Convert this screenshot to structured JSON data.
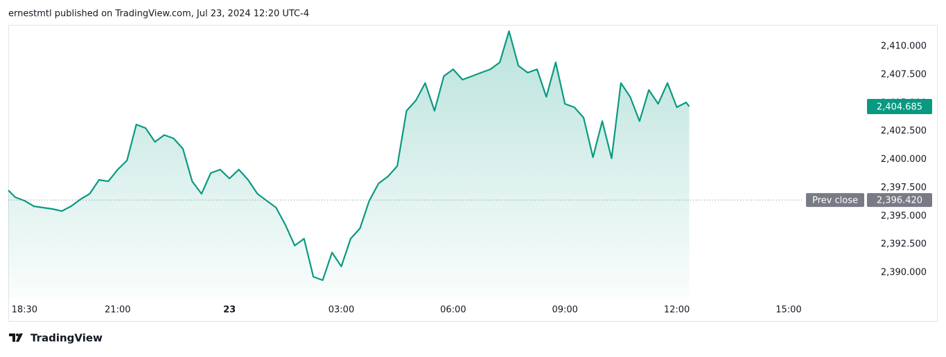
{
  "header": "ernestmtl published on TradingView.com, Jul 23, 2024 12:20 UTC-4",
  "footer_brand": "TradingView",
  "chart_data": {
    "type": "area",
    "color": "#089981",
    "x": [
      "18:04",
      "18:15",
      "18:30",
      "18:45",
      "19:00",
      "19:15",
      "19:30",
      "19:45",
      "20:00",
      "20:15",
      "20:30",
      "20:45",
      "21:00",
      "21:15",
      "21:30",
      "21:45",
      "22:00",
      "22:15",
      "22:30",
      "22:45",
      "23:00",
      "23:15",
      "23:30",
      "23:45",
      "00:00",
      "00:15",
      "00:30",
      "00:45",
      "01:00",
      "01:15",
      "01:30",
      "01:45",
      "02:00",
      "02:15",
      "02:30",
      "02:45",
      "03:00",
      "03:15",
      "03:30",
      "03:45",
      "04:00",
      "04:15",
      "04:30",
      "04:45",
      "05:00",
      "05:15",
      "05:30",
      "05:45",
      "06:00",
      "06:15",
      "06:30",
      "06:45",
      "07:00",
      "07:15",
      "07:30",
      "07:45",
      "08:00",
      "08:15",
      "08:30",
      "08:45",
      "09:00",
      "09:15",
      "09:30",
      "09:45",
      "10:00",
      "10:15",
      "10:30",
      "10:45",
      "11:00",
      "11:15",
      "11:30",
      "11:45",
      "12:00",
      "12:15",
      "12:20"
    ],
    "values": [
      2397.28,
      2396.67,
      2396.36,
      2395.87,
      2395.75,
      2395.63,
      2395.44,
      2395.87,
      2396.48,
      2396.97,
      2398.2,
      2398.07,
      2399.11,
      2399.91,
      2403.09,
      2402.78,
      2401.56,
      2402.17,
      2401.87,
      2400.95,
      2398.07,
      2396.97,
      2398.81,
      2399.11,
      2398.32,
      2399.11,
      2398.2,
      2396.97,
      2396.36,
      2395.75,
      2394.22,
      2392.39,
      2393.0,
      2389.63,
      2389.33,
      2391.78,
      2390.55,
      2393.0,
      2393.91,
      2396.36,
      2397.89,
      2398.5,
      2399.42,
      2404.31,
      2405.23,
      2406.76,
      2404.31,
      2407.37,
      2407.98,
      2407.06,
      2407.37,
      2407.68,
      2407.98,
      2408.59,
      2411.35,
      2408.29,
      2407.68,
      2407.98,
      2405.54,
      2408.59,
      2404.92,
      2404.62,
      2403.7,
      2400.2,
      2403.39,
      2400.1,
      2406.76,
      2405.54,
      2403.39,
      2406.15,
      2404.92,
      2406.76,
      2404.62,
      2405.05,
      2404.685
    ],
    "last_price": {
      "value": 2404.685,
      "label": "2,404.685"
    },
    "prev_close": {
      "name": "Prev close",
      "value": 2396.42,
      "label": "2,396.420"
    },
    "xlim": [
      "18:04",
      "17:05"
    ],
    "xticks": [
      "18:30",
      "21:00",
      {
        "value": "00:00",
        "label": "23"
      },
      "03:00",
      "06:00",
      "09:00",
      "12:00",
      "15:00"
    ],
    "ylim": [
      2387.68,
      2411.9
    ],
    "yticks": [
      {
        "value": 2390,
        "label": "2,390.000"
      },
      {
        "value": 2392.5,
        "label": "2,392.500"
      },
      {
        "value": 2395,
        "label": "2,395.000"
      },
      {
        "value": 2397.5,
        "label": "2,397.500"
      },
      {
        "value": 2400,
        "label": "2,400.000"
      },
      {
        "value": 2402.5,
        "label": "2,402.500"
      },
      {
        "value": 2405,
        "label": "2,405.000"
      },
      {
        "value": 2407.5,
        "label": "2,407.500"
      },
      {
        "value": 2410,
        "label": "2,410.000"
      }
    ],
    "grid": false
  }
}
